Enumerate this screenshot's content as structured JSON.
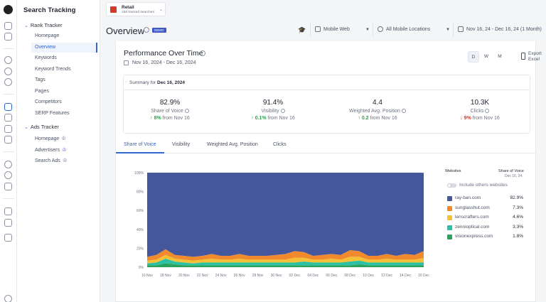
{
  "app": {
    "title": "Search Tracking"
  },
  "nav": {
    "rank_tracker": "Rank Tracker",
    "rank_items": [
      "Homepage",
      "Overview",
      "Keywords",
      "Keyword Trends",
      "Tags",
      "Pages",
      "Competitors",
      "SERP Features"
    ],
    "ads_tracker": "Ads Tracker",
    "ads_items": [
      "Homepage",
      "Advertisers",
      "Search Ads"
    ]
  },
  "project": {
    "name": "Retail",
    "subtitle": "156 tracked searches"
  },
  "page": {
    "title": "Overview",
    "badge": "DEMO"
  },
  "filters": {
    "device": "Mobile Web",
    "location": "All Mobile Locations",
    "date": "Nov 16, 24 - Dec 16, 24 (1 Month)"
  },
  "performance": {
    "title": "Performance Over Time",
    "date_range": "Nov 16, 2024 - Dec 16, 2024",
    "periods": [
      "D",
      "W",
      "M"
    ],
    "export_line1": "Export",
    "export_line2": "Excel"
  },
  "summary": {
    "prefix": "Summary for",
    "date": "Dec 16, 2024",
    "metrics": [
      {
        "value": "82.9%",
        "label": "Share of Voice",
        "change": "8%",
        "direction": "up",
        "from": "from Nov 16"
      },
      {
        "value": "91.4%",
        "label": "Visibility",
        "change": "0.1%",
        "direction": "up",
        "from": "from Nov 16"
      },
      {
        "value": "4.4",
        "label": "Weighted Avg. Position",
        "change": "0.2",
        "direction": "up",
        "from": "from Nov 16"
      },
      {
        "value": "10.3K",
        "label": "Clicks",
        "change": "9%",
        "direction": "down",
        "from": "from Nov 16"
      }
    ]
  },
  "tabs": [
    "Share of Voice",
    "Visibility",
    "Weighted Avg. Position",
    "Clicks"
  ],
  "legend": {
    "header_websites": "Websites",
    "header_sov": "Share of Voice",
    "header_date": "Dec 16, 24",
    "toggle_label": "Include others websites",
    "items": [
      {
        "name": "ray-ban.com",
        "value": "82.9%",
        "color": "#44579c"
      },
      {
        "name": "sunglasshut.com",
        "value": "7.3%",
        "color": "#f08a2c"
      },
      {
        "name": "lenscrafters.com",
        "value": "4.6%",
        "color": "#f4c136"
      },
      {
        "name": "zennioptical.com",
        "value": "3.3%",
        "color": "#2cc0a5"
      },
      {
        "name": "visionexpress.com",
        "value": "1.8%",
        "color": "#29a35b"
      }
    ]
  },
  "chart_data": {
    "type": "area",
    "stacked": true,
    "x": [
      "16 Nov",
      "17 Nov",
      "18 Nov",
      "19 Nov",
      "20 Nov",
      "21 Nov",
      "22 Nov",
      "23 Nov",
      "24 Nov",
      "25 Nov",
      "26 Nov",
      "27 Nov",
      "28 Nov",
      "29 Nov",
      "30 Nov",
      "01 Dec",
      "02 Dec",
      "03 Dec",
      "04 Dec",
      "05 Dec",
      "06 Dec",
      "07 Dec",
      "08 Dec",
      "09 Dec",
      "10 Dec",
      "11 Dec",
      "12 Dec",
      "13 Dec",
      "14 Dec",
      "15 Dec",
      "16 Dec"
    ],
    "x_tick_labels": [
      "16 Nov",
      "18 Nov",
      "20 Nov",
      "22 Nov",
      "24 Nov",
      "26 Nov",
      "28 Nov",
      "30 Nov",
      "02 Dec",
      "04 Dec",
      "06 Dec",
      "08 Dec",
      "10 Dec",
      "12 Dec",
      "14 Dec",
      "16 Dec"
    ],
    "y_ticks": [
      "0%",
      "20%",
      "40%",
      "60%",
      "80%",
      "100%"
    ],
    "ylim": [
      0,
      100
    ],
    "series": [
      {
        "name": "visionexpress.com",
        "color": "#29a35b",
        "values": [
          2,
          2,
          4,
          3,
          2,
          2,
          2,
          2,
          2,
          2,
          2,
          2,
          2,
          2,
          2,
          2,
          2,
          2,
          2,
          2,
          2,
          2,
          2,
          3,
          2,
          2,
          2,
          2,
          2,
          2,
          1.8
        ]
      },
      {
        "name": "zennioptical.com",
        "color": "#2cc0a5",
        "values": [
          2,
          3,
          5,
          3,
          3,
          2,
          3,
          3,
          3,
          3,
          3,
          3,
          3,
          3,
          3,
          3,
          3,
          4,
          3,
          3,
          3,
          3,
          4,
          4,
          3,
          3,
          3,
          3,
          3,
          3,
          3.3
        ]
      },
      {
        "name": "lenscrafters.com",
        "color": "#f4c136",
        "values": [
          3,
          3,
          4,
          3,
          3,
          3,
          3,
          4,
          3,
          3,
          4,
          3,
          3,
          3,
          3,
          3,
          5,
          4,
          3,
          3,
          4,
          3,
          5,
          4,
          3,
          3,
          4,
          3,
          3,
          3,
          4.6
        ]
      },
      {
        "name": "sunglasshut.com",
        "color": "#f08a2c",
        "values": [
          4,
          5,
          6,
          4,
          4,
          4,
          4,
          5,
          4,
          4,
          5,
          4,
          4,
          4,
          5,
          6,
          7,
          6,
          4,
          5,
          5,
          5,
          7,
          6,
          4,
          4,
          5,
          4,
          6,
          5,
          7.3
        ]
      },
      {
        "name": "ray-ban.com",
        "color": "#44579c",
        "values": [
          89,
          87,
          81,
          87,
          88,
          89,
          88,
          86,
          88,
          88,
          86,
          88,
          88,
          88,
          87,
          86,
          83,
          84,
          88,
          87,
          86,
          87,
          82,
          83,
          88,
          88,
          86,
          88,
          86,
          87,
          82.9
        ]
      }
    ]
  }
}
